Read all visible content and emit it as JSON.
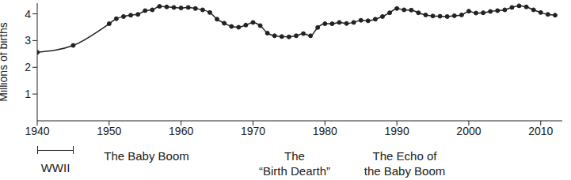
{
  "chart_data": {
    "type": "line",
    "y_label": "Millions of births",
    "color": "#222222",
    "marker": "circle",
    "grid": false,
    "x": [
      1940,
      1945,
      1950,
      1951,
      1952,
      1953,
      1954,
      1955,
      1956,
      1957,
      1958,
      1959,
      1960,
      1961,
      1962,
      1963,
      1964,
      1965,
      1966,
      1967,
      1968,
      1969,
      1970,
      1971,
      1972,
      1973,
      1974,
      1975,
      1976,
      1977,
      1978,
      1979,
      1980,
      1981,
      1982,
      1983,
      1984,
      1985,
      1986,
      1987,
      1988,
      1989,
      1990,
      1991,
      1992,
      1993,
      1994,
      1995,
      1996,
      1997,
      1998,
      1999,
      2000,
      2001,
      2002,
      2003,
      2004,
      2005,
      2006,
      2007,
      2008,
      2009,
      2010,
      2011,
      2012
    ],
    "values": [
      2.56,
      2.82,
      3.63,
      3.82,
      3.9,
      3.95,
      3.98,
      4.12,
      4.15,
      4.28,
      4.26,
      4.24,
      4.22,
      4.24,
      4.2,
      4.15,
      4.05,
      3.8,
      3.65,
      3.53,
      3.5,
      3.58,
      3.68,
      3.56,
      3.28,
      3.18,
      3.15,
      3.14,
      3.18,
      3.26,
      3.18,
      3.49,
      3.63,
      3.63,
      3.68,
      3.64,
      3.68,
      3.76,
      3.74,
      3.8,
      3.9,
      4.04,
      4.2,
      4.15,
      4.14,
      4.04,
      3.96,
      3.92,
      3.91,
      3.9,
      3.93,
      3.96,
      4.1,
      4.03,
      4.04,
      4.09,
      4.12,
      4.15,
      4.24,
      4.3,
      4.26,
      4.15,
      4.05,
      3.98,
      3.95
    ],
    "xlim": [
      1940,
      2013
    ],
    "xticks": [
      1940,
      1950,
      1960,
      1970,
      1980,
      1990,
      2000,
      2010
    ],
    "ylim": [
      0,
      4.4
    ],
    "yticks": [
      1,
      2,
      3,
      4
    ],
    "annotations": [
      "WWII",
      "The Baby Boom",
      "The\n“Birth Dearth”",
      "The Echo of\nthe Baby Boom"
    ]
  }
}
